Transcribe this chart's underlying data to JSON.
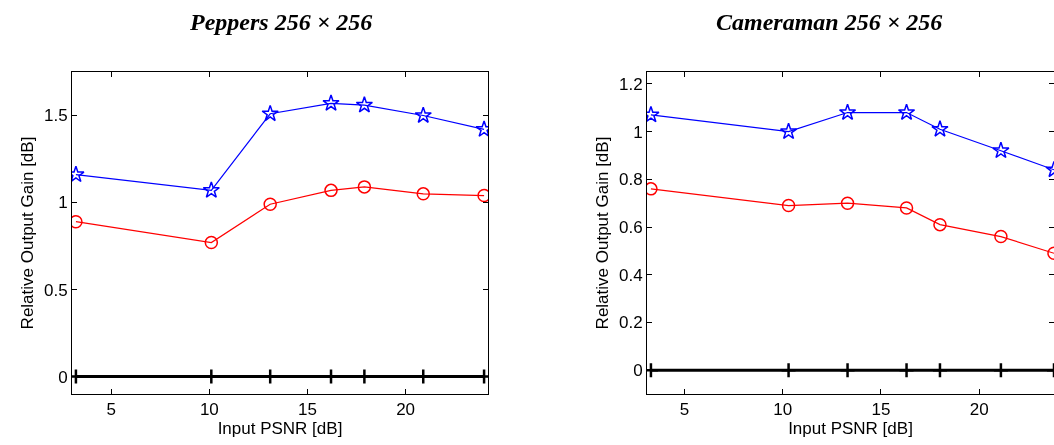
{
  "chart_data": [
    {
      "type": "line",
      "title": "Peppers 256 × 256",
      "xlabel": "Input PSNR [dB]",
      "ylabel": "Relative Output Gain [dB]",
      "xlim": [
        3,
        24.2
      ],
      "xticks": [
        5,
        10,
        15,
        20
      ],
      "ylim": [
        -0.1,
        1.75
      ],
      "yticks": [
        0,
        0.5,
        1,
        1.5
      ],
      "x": [
        3.2,
        10.1,
        13.1,
        16.2,
        17.9,
        20.9,
        24.0
      ],
      "series": [
        {
          "color": "#0000ff",
          "marker": "star",
          "values": [
            1.16,
            1.07,
            1.51,
            1.57,
            1.56,
            1.5,
            1.42
          ]
        },
        {
          "color": "#ff0000",
          "marker": "circle",
          "values": [
            0.89,
            0.77,
            0.99,
            1.07,
            1.09,
            1.05,
            1.04
          ]
        },
        {
          "color": "#000000",
          "marker": "cross",
          "values": [
            0,
            0,
            0,
            0,
            0,
            0,
            0
          ]
        }
      ]
    },
    {
      "type": "line",
      "title": "Cameraman 256 × 256",
      "xlabel": "Input PSNR [dB]",
      "ylabel": "Relative Output Gain [dB]",
      "xlim": [
        3.1,
        23.8
      ],
      "xticks": [
        5,
        10,
        15,
        20
      ],
      "ylim": [
        -0.1,
        1.25
      ],
      "yticks": [
        0,
        0.2,
        0.4,
        0.6,
        0.8,
        1,
        1.2
      ],
      "x": [
        3.3,
        10.3,
        13.3,
        16.3,
        18.0,
        21.1,
        23.8
      ],
      "series": [
        {
          "color": "#0000ff",
          "marker": "star",
          "values": [
            1.07,
            1.0,
            1.08,
            1.08,
            1.01,
            0.92,
            0.84
          ]
        },
        {
          "color": "#ff0000",
          "marker": "circle",
          "values": [
            0.76,
            0.69,
            0.7,
            0.68,
            0.61,
            0.56,
            0.49
          ]
        },
        {
          "color": "#000000",
          "marker": "cross",
          "values": [
            0,
            0,
            0,
            0,
            0,
            0,
            0
          ]
        }
      ]
    }
  ]
}
